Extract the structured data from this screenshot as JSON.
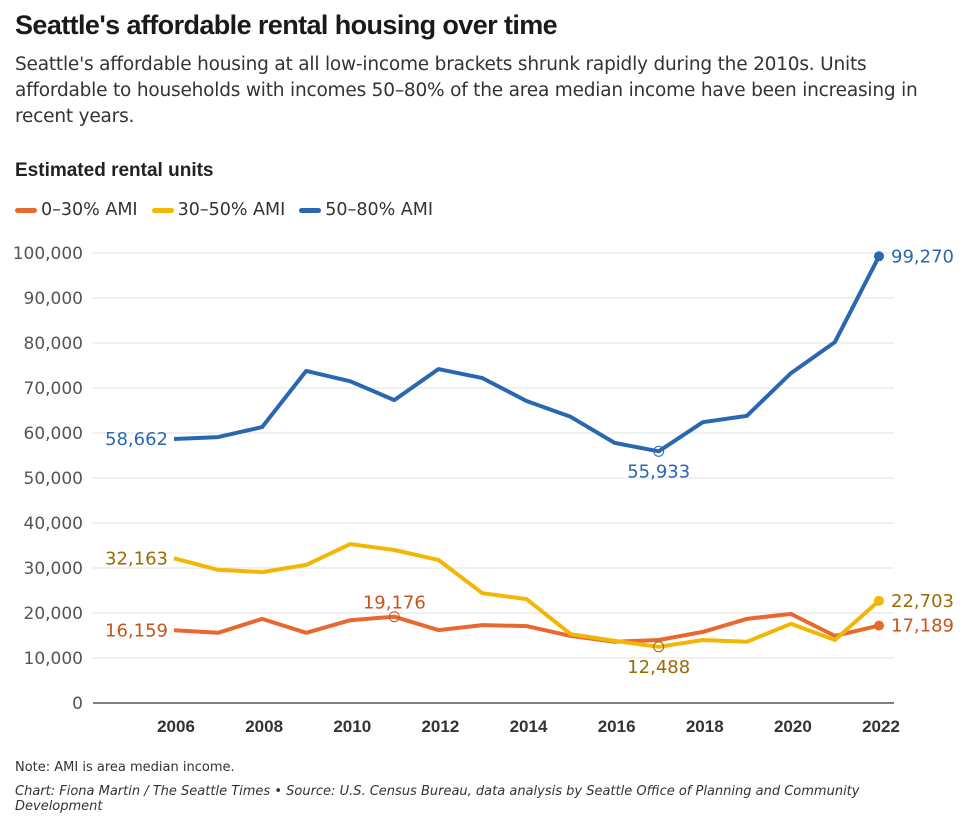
{
  "header": {
    "title": "Seattle's affordable rental housing over time",
    "subtitle": "Seattle's affordable housing at all low-income brackets shrunk rapidly during the 2010s. Units affordable to households with incomes 50–80% of the area median income have been increasing in recent years."
  },
  "footer": {
    "note": "Note: AMI is area median income.",
    "credit": "Chart: Fiona Martin / The Seattle Times • Source: U.S. Census Bureau, data analysis by Seattle Office of Planning and Community Development"
  },
  "chart_data": {
    "type": "line",
    "title": "Seattle's affordable rental housing over time",
    "ylabel": "Estimated rental units",
    "xlabel": "",
    "ylim": [
      0,
      100000
    ],
    "yticks": [
      0,
      10000,
      20000,
      30000,
      40000,
      50000,
      60000,
      70000,
      80000,
      90000,
      100000
    ],
    "ytick_labels": [
      "0",
      "10,000",
      "20,000",
      "30,000",
      "40,000",
      "50,000",
      "60,000",
      "70,000",
      "80,000",
      "90,000",
      "100,000"
    ],
    "xlim": [
      2004.2,
      2022.3
    ],
    "x": [
      2006,
      2007,
      2008,
      2009,
      2010,
      2011,
      2012,
      2013,
      2014,
      2015,
      2016,
      2017,
      2018,
      2019,
      2020,
      2021,
      2022
    ],
    "xticks": [
      2006,
      2008,
      2010,
      2012,
      2014,
      2016,
      2018,
      2020,
      2022
    ],
    "xtick_labels": [
      "2006",
      "2008",
      "2010",
      "2012",
      "2014",
      "2016",
      "2018",
      "2020",
      "2022"
    ],
    "grid": true,
    "legend_position": "top-left",
    "series": [
      {
        "name": "0–30% AMI",
        "color": "#e8692f",
        "label_color": "#c9531a",
        "values": [
          16159,
          15600,
          18700,
          15600,
          18400,
          19176,
          16200,
          17300,
          17100,
          14900,
          13600,
          14000,
          15800,
          18700,
          19800,
          14900,
          17189
        ],
        "annotations": [
          {
            "x": 2006,
            "text": "16,159",
            "position": "left"
          },
          {
            "x": 2011,
            "text": "19,176",
            "position": "above",
            "marker": "hollow"
          },
          {
            "x": 2022,
            "text": "17,189",
            "position": "right",
            "marker": "filled"
          }
        ]
      },
      {
        "name": "30–50% AMI",
        "color": "#f2b705",
        "label_color": "#9a6a06",
        "values": [
          32163,
          29600,
          29100,
          30700,
          35300,
          34000,
          31800,
          24400,
          23100,
          15300,
          13800,
          12488,
          14000,
          13600,
          17600,
          14000,
          22703
        ],
        "annotations": [
          {
            "x": 2006,
            "text": "32,163",
            "position": "left"
          },
          {
            "x": 2017,
            "text": "12,488",
            "position": "below",
            "marker": "hollow"
          },
          {
            "x": 2022,
            "text": "22,703",
            "position": "right",
            "marker": "filled"
          }
        ]
      },
      {
        "name": "50–80% AMI",
        "color": "#2a67b1",
        "label_color": "#2a67b1",
        "values": [
          58662,
          59100,
          61300,
          73800,
          71500,
          67300,
          74200,
          72200,
          67100,
          63600,
          57800,
          55933,
          62400,
          63800,
          73300,
          80200,
          99270
        ],
        "annotations": [
          {
            "x": 2006,
            "text": "58,662",
            "position": "left"
          },
          {
            "x": 2017,
            "text": "55,933",
            "position": "below",
            "marker": "hollow"
          },
          {
            "x": 2022,
            "text": "99,270",
            "position": "right",
            "marker": "filled"
          }
        ]
      }
    ]
  }
}
